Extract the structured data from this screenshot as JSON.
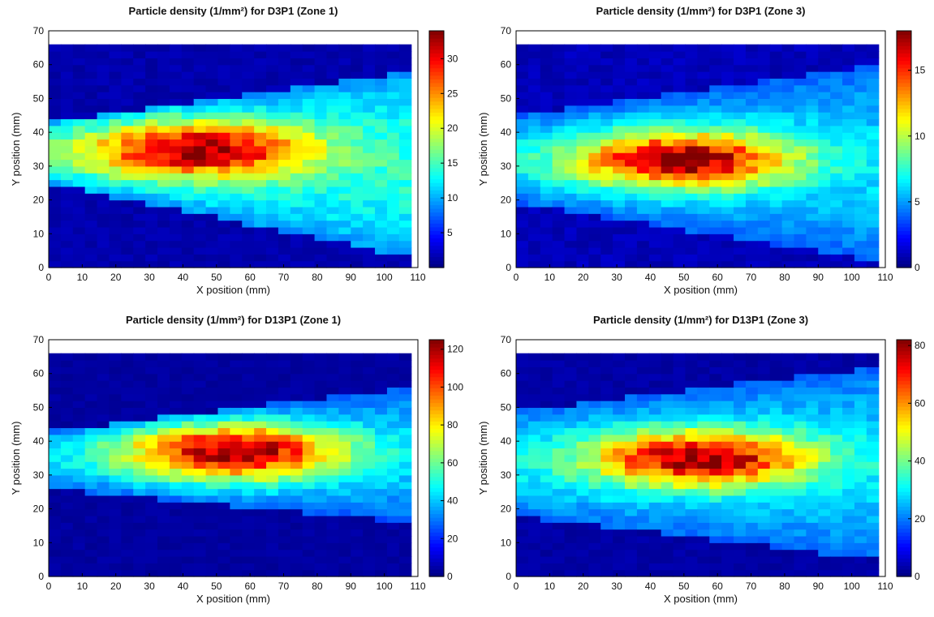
{
  "chart_data": [
    {
      "type": "heatmap",
      "title": "Particle density (1/mm²) for D3P1 (Zone 1)",
      "xlabel": "X position (mm)",
      "ylabel": "Y position (mm)",
      "xlim": [
        0,
        110
      ],
      "ylim": [
        0,
        70
      ],
      "xticks": [
        "0",
        "10",
        "20",
        "30",
        "40",
        "50",
        "60",
        "70",
        "80",
        "90",
        "100",
        "110"
      ],
      "yticks": [
        "0",
        "10",
        "20",
        "30",
        "40",
        "50",
        "60",
        "70"
      ],
      "colorbar": {
        "min": 0,
        "max": 34,
        "ticks": [
          "5",
          "10",
          "15",
          "20",
          "25",
          "30"
        ],
        "tick_values": [
          5,
          10,
          15,
          20,
          25,
          30
        ]
      },
      "field": {
        "x_extent": [
          0,
          108
        ],
        "y_extent": [
          0,
          66
        ],
        "bin_mm": 3.6,
        "beam_left_y": [
          25,
          43
        ],
        "beam_right_y": [
          3,
          58
        ],
        "peak_value": 34,
        "peak_x": 45,
        "peak_y": 35,
        "edge_value": 14,
        "background": 1.5
      }
    },
    {
      "type": "heatmap",
      "title": "Particle density (1/mm²) for D3P1 (Zone 3)",
      "xlabel": "X position (mm)",
      "ylabel": "Y position (mm)",
      "xlim": [
        0,
        110
      ],
      "ylim": [
        0,
        70
      ],
      "xticks": [
        "0",
        "10",
        "20",
        "30",
        "40",
        "50",
        "60",
        "70",
        "80",
        "90",
        "100",
        "110"
      ],
      "yticks": [
        "0",
        "10",
        "20",
        "30",
        "40",
        "50",
        "60",
        "70"
      ],
      "colorbar": {
        "min": 0,
        "max": 18,
        "ticks": [
          "0",
          "5",
          "10",
          "15"
        ],
        "tick_values": [
          0,
          5,
          10,
          15
        ]
      },
      "field": {
        "x_extent": [
          0,
          108
        ],
        "y_extent": [
          0,
          66
        ],
        "bin_mm": 3.6,
        "beam_left_y": [
          19,
          45
        ],
        "beam_right_y": [
          2,
          60
        ],
        "peak_value": 18,
        "peak_x": 50,
        "peak_y": 32,
        "edge_value": 6,
        "background": 1.0
      }
    },
    {
      "type": "heatmap",
      "title": "Particle density (1/mm²) for D13P1 (Zone 1)",
      "xlabel": "X position (mm)",
      "ylabel": "Y position (mm)",
      "xlim": [
        0,
        110
      ],
      "ylim": [
        0,
        70
      ],
      "xticks": [
        "0",
        "10",
        "20",
        "30",
        "40",
        "50",
        "60",
        "70",
        "80",
        "90",
        "100",
        "110"
      ],
      "yticks": [
        "0",
        "10",
        "20",
        "30",
        "40",
        "50",
        "60",
        "70"
      ],
      "colorbar": {
        "min": 0,
        "max": 125,
        "ticks": [
          "0",
          "20",
          "40",
          "60",
          "80",
          "100",
          "120"
        ],
        "tick_values": [
          0,
          20,
          40,
          60,
          80,
          100,
          120
        ]
      },
      "field": {
        "x_extent": [
          0,
          108
        ],
        "y_extent": [
          0,
          66
        ],
        "bin_mm": 3.6,
        "beam_left_y": [
          26,
          43
        ],
        "beam_right_y": [
          16,
          56
        ],
        "peak_value": 125,
        "peak_x": 55,
        "peak_y": 37,
        "edge_value": 40,
        "background": 4
      }
    },
    {
      "type": "heatmap",
      "title": "Particle density (1/mm²) for D13P1 (Zone 3)",
      "xlabel": "X position (mm)",
      "ylabel": "Y position (mm)",
      "xlim": [
        0,
        110
      ],
      "ylim": [
        0,
        70
      ],
      "xticks": [
        "0",
        "10",
        "20",
        "30",
        "40",
        "50",
        "60",
        "70",
        "80",
        "90",
        "100",
        "110"
      ],
      "yticks": [
        "0",
        "10",
        "20",
        "30",
        "40",
        "50",
        "60",
        "70"
      ],
      "colorbar": {
        "min": 0,
        "max": 82,
        "ticks": [
          "0",
          "20",
          "40",
          "60",
          "80"
        ],
        "tick_values": [
          0,
          20,
          40,
          60,
          80
        ]
      },
      "field": {
        "x_extent": [
          0,
          108
        ],
        "y_extent": [
          0,
          66
        ],
        "bin_mm": 3.6,
        "beam_left_y": [
          18,
          49
        ],
        "beam_right_y": [
          5,
          62
        ],
        "peak_value": 82,
        "peak_x": 55,
        "peak_y": 35,
        "edge_value": 28,
        "background": 3
      }
    }
  ]
}
